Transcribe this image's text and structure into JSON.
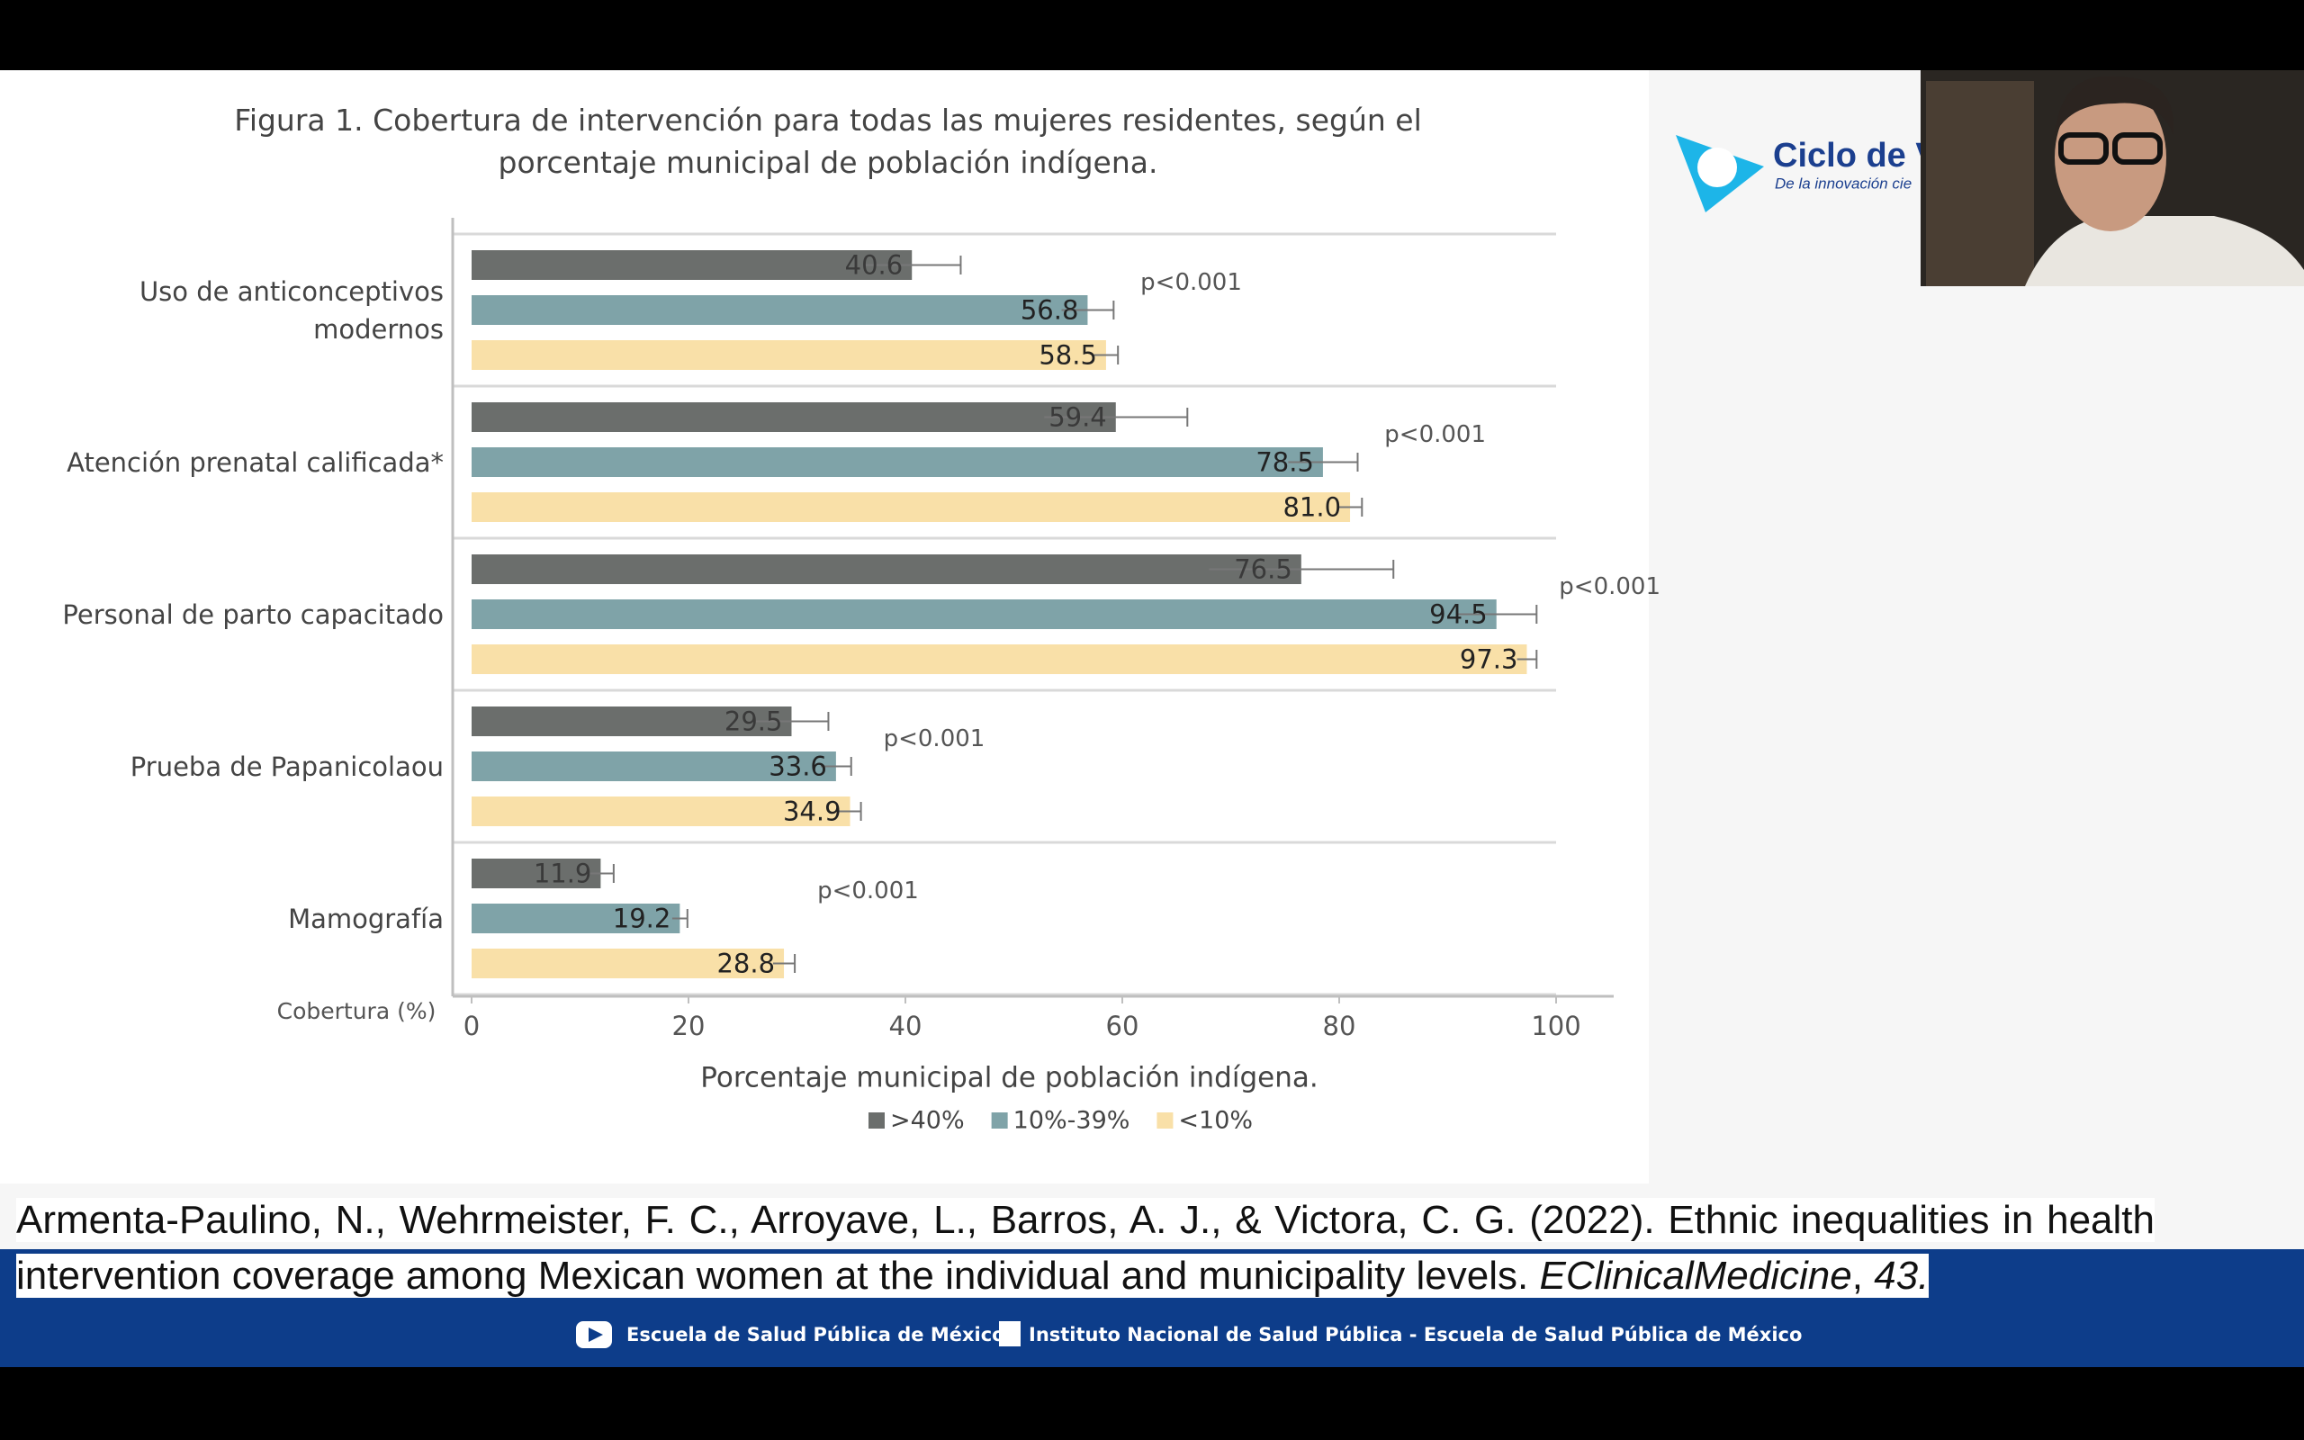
{
  "chart_data": {
    "type": "bar",
    "orientation": "horizontal",
    "title": "Figura 1. Cobertura de intervención para todas las mujeres residentes, según el porcentaje municipal de población indígena.",
    "categories": [
      "Uso de anticonceptivos modernos",
      "Atención prenatal calificada*",
      "Personal de parto capacitado",
      "Prueba de Papanicolaou",
      "Mamografía"
    ],
    "series": [
      {
        "name": ">40%",
        "color": "#6b6e6c",
        "values": [
          40.6,
          59.4,
          76.5,
          29.5,
          11.9
        ],
        "value_labels": [
          "40.6",
          "59.4",
          "76.5",
          "29.5",
          "11.9"
        ],
        "errors": [
          4.5,
          6.6,
          8.5,
          3.4,
          1.2
        ]
      },
      {
        "name": "10%-39%",
        "color": "#7fa3a8",
        "values": [
          56.8,
          78.5,
          94.5,
          33.6,
          19.2
        ],
        "value_labels": [
          "56.8",
          "78.5",
          "94.5",
          "33.6",
          "19.2"
        ],
        "errors": [
          2.4,
          3.2,
          3.7,
          1.4,
          0.7
        ]
      },
      {
        "name": "<10%",
        "color": "#f9e0a8",
        "values": [
          58.5,
          81.0,
          97.3,
          34.9,
          28.8
        ],
        "value_labels": [
          "58.5",
          "81.0",
          "97.3",
          "34.9",
          "28.8"
        ],
        "errors": [
          1.1,
          1.1,
          0.9,
          1.0,
          1.0
        ]
      }
    ],
    "annotations": [
      "p<0.001",
      "p<0.001",
      "p<0.001",
      "p<0.001",
      "p<0.001"
    ],
    "xlabel": "Porcentaje municipal de población indígena.",
    "ylabel": "Cobertura (%)",
    "xlim": [
      0,
      100
    ],
    "xticks": [
      0,
      20,
      40,
      60,
      80,
      100
    ],
    "grid": true,
    "legend": "bottom"
  },
  "screen": {
    "logo_title": "Ciclo de Vi",
    "logo_subtitle": "De la innovación cie",
    "citation": [
      {
        "text": "Armenta-Paulino, N., Wehrmeister, F. C., Arroyave, L., Barros, A. J., & Victora, C. G. (2022). Ethnic inequalities in health intervention coverage among Mexican women at the individual and municipality levels. ",
        "italic": false
      },
      {
        "text": "EClinicalMedicine",
        "italic": true
      },
      {
        "text": ", ",
        "italic": false
      },
      {
        "text": "43.",
        "italic": true
      }
    ],
    "footer": [
      "Escuela de Salud Pública de México",
      "Instituto Nacional de Salud Pública - Escuela de Salud Pública de México"
    ]
  }
}
